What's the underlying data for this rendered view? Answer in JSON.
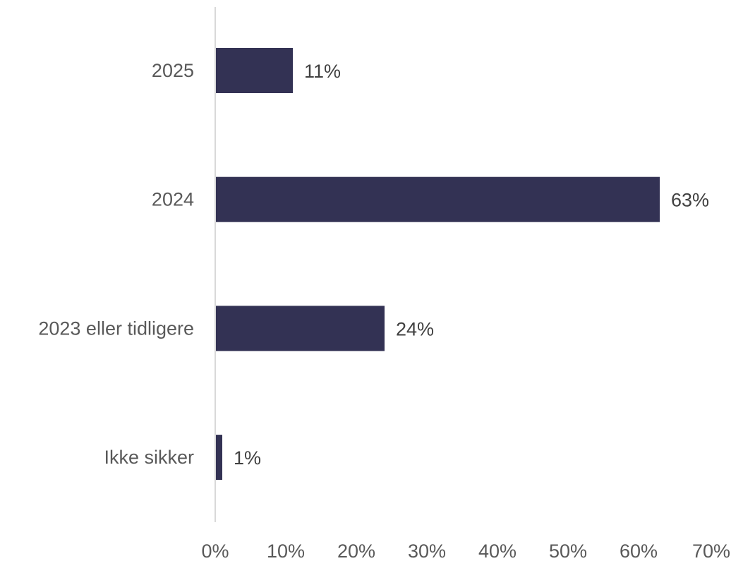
{
  "chart_data": {
    "type": "bar",
    "orientation": "horizontal",
    "categories": [
      "2025",
      "2024",
      "2023 eller tidligere",
      "Ikke sikker"
    ],
    "values": [
      11,
      63,
      24,
      1
    ],
    "data_labels": [
      "11%",
      "63%",
      "24%",
      "1%"
    ],
    "title": "",
    "xlabel": "",
    "ylabel": "",
    "xlim": [
      0,
      70
    ],
    "x_ticks": [
      0,
      10,
      20,
      30,
      40,
      50,
      60,
      70
    ],
    "x_tick_labels": [
      "0%",
      "10%",
      "20%",
      "30%",
      "40%",
      "50%",
      "60%",
      "70%"
    ],
    "grid": false,
    "legend": "none",
    "colors": {
      "bar": "#333254",
      "axis": "#d9d9d9",
      "label": "#595959",
      "data_label": "#404040"
    }
  }
}
